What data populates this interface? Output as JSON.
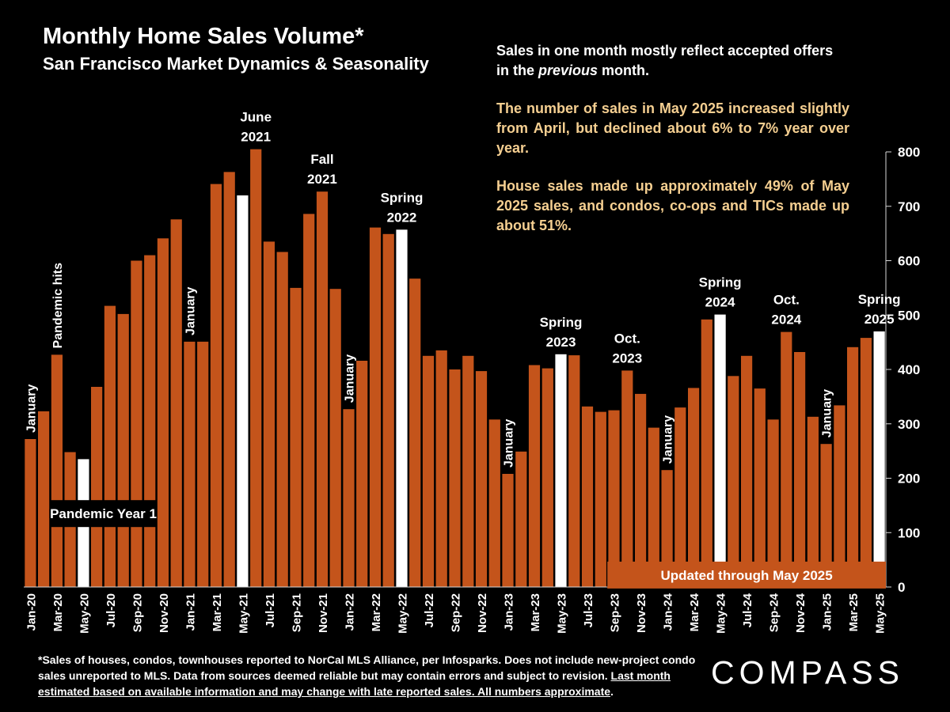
{
  "title": "Monthly Home Sales Volume*",
  "subtitle": "San Francisco Market Dynamics & Seasonality",
  "notes": {
    "line1_a": "Sales in one month mostly reflect accepted offers in the ",
    "line1_em": "previous",
    "line1_b": " month.",
    "paragraph2": "The number of sales in May 2025 increased slightly from April, but declined about 6% to 7% year over year.",
    "paragraph3": "House sales made up approximately 49% of May 2025 sales, and condos, co-ops and TICs made up about 51%."
  },
  "footnote": {
    "text": "*Sales of houses, condos, townhouses reported to NorCal MLS Alliance, per Infosparks. Does not include new-project condo sales unreported to MLS. Data from sources deemed reliable but may contain errors and subject to revision. ",
    "link_text": "Last month estimated based on available information and may change with late reported sales. All numbers approximate",
    "end": "."
  },
  "logo": "COMPASS",
  "colors": {
    "bar": "#c4541b",
    "highlight_bar": "#ffffff",
    "note_text": "#f5cf91",
    "background": "#000000",
    "axis": "#d9d9d9"
  },
  "chart_data": {
    "type": "bar",
    "categories": [
      "Jan-20",
      "Feb-20",
      "Mar-20",
      "Apr-20",
      "May-20",
      "Jun-20",
      "Jul-20",
      "Aug-20",
      "Sep-20",
      "Oct-20",
      "Nov-20",
      "Dec-20",
      "Jan-21",
      "Feb-21",
      "Mar-21",
      "Apr-21",
      "May-21",
      "Jun-21",
      "Jul-21",
      "Aug-21",
      "Sep-21",
      "Oct-21",
      "Nov-21",
      "Dec-21",
      "Jan-22",
      "Feb-22",
      "Mar-22",
      "Apr-22",
      "May-22",
      "Jun-22",
      "Jul-22",
      "Aug-22",
      "Sep-22",
      "Oct-22",
      "Nov-22",
      "Dec-22",
      "Jan-23",
      "Feb-23",
      "Mar-23",
      "Apr-23",
      "May-23",
      "Jun-23",
      "Jul-23",
      "Aug-23",
      "Sep-23",
      "Oct-23",
      "Nov-23",
      "Dec-23",
      "Jan-24",
      "Feb-24",
      "Mar-24",
      "Apr-24",
      "May-24",
      "Jun-24",
      "Jul-24",
      "Aug-24",
      "Sep-24",
      "Oct-24",
      "Nov-24",
      "Dec-24",
      "Jan-25",
      "Feb-25",
      "Mar-25",
      "Apr-25",
      "May-25"
    ],
    "x_tick_labels": [
      "Jan-20",
      "Mar-20",
      "May-20",
      "Jul-20",
      "Sep-20",
      "Nov-20",
      "Jan-21",
      "Mar-21",
      "May-21",
      "Jul-21",
      "Sep-21",
      "Nov-21",
      "Jan-22",
      "Mar-22",
      "May-22",
      "Jul-22",
      "Sep-22",
      "Nov-22",
      "Jan-23",
      "Mar-23",
      "May-23",
      "Jul-23",
      "Sep-23",
      "Nov-23",
      "Jan-24",
      "Mar-24",
      "May-24",
      "Jul-24",
      "Sep-24",
      "Nov-24",
      "Jan-25",
      "Mar-25",
      "May-25"
    ],
    "values": [
      272,
      323,
      427,
      248,
      235,
      368,
      517,
      502,
      600,
      610,
      641,
      676,
      451,
      451,
      741,
      763,
      720,
      805,
      635,
      616,
      550,
      686,
      727,
      548,
      327,
      416,
      661,
      649,
      657,
      567,
      425,
      435,
      400,
      425,
      397,
      308,
      208,
      249,
      408,
      402,
      428,
      426,
      332,
      322,
      325,
      398,
      355,
      293,
      215,
      330,
      366,
      492,
      501,
      388,
      425,
      365,
      308,
      469,
      432,
      313,
      263,
      334,
      441,
      458,
      470
    ],
    "highlight": [
      "May-20",
      "May-21",
      "May-22",
      "May-23",
      "May-24",
      "May-25"
    ],
    "ylim": [
      0,
      800
    ],
    "yticks": [
      0,
      100,
      200,
      300,
      400,
      500,
      600,
      700,
      800
    ],
    "ylabel": "",
    "xlabel": "",
    "annotations": [
      {
        "category": "Jan-20",
        "text": "January",
        "style": "vertical"
      },
      {
        "category": "Mar-20",
        "text": "Pandemic hits",
        "style": "vertical"
      },
      {
        "category": "Jan-21",
        "text": "January",
        "style": "vertical"
      },
      {
        "category": "Jan-22",
        "text": "January",
        "style": "vertical"
      },
      {
        "category": "Jan-23",
        "text": "January",
        "style": "vertical"
      },
      {
        "category": "Jan-24",
        "text": "January",
        "style": "vertical"
      },
      {
        "category": "Jan-25",
        "text": "January",
        "style": "vertical"
      },
      {
        "category": "Jun-21",
        "text": "June\n2021",
        "style": "above"
      },
      {
        "category": "Nov-21",
        "text": "Fall\n2021",
        "style": "above"
      },
      {
        "category": "May-22",
        "text": "Spring\n2022",
        "style": "above"
      },
      {
        "category": "May-23",
        "text": "Spring\n2023",
        "style": "above"
      },
      {
        "category": "Oct-23",
        "text": "Oct.\n2023",
        "style": "above"
      },
      {
        "category": "May-24",
        "text": "Spring\n2024",
        "style": "above"
      },
      {
        "category": "Oct-24",
        "text": "Oct.\n2024",
        "style": "above"
      },
      {
        "category": "May-25",
        "text": "Spring\n2025",
        "style": "above"
      }
    ],
    "boxes": [
      {
        "text": "Pandemic Year 1",
        "fill": "#000000",
        "color": "#ffffff",
        "from": "Mar-20",
        "to": "Oct-20",
        "at_value": 135
      },
      {
        "text": "Updated through May 2025",
        "fill": "#c4541b",
        "color": "#ffffff",
        "from": "Sep-23",
        "to": "May-25",
        "at_value": 22
      }
    ]
  }
}
